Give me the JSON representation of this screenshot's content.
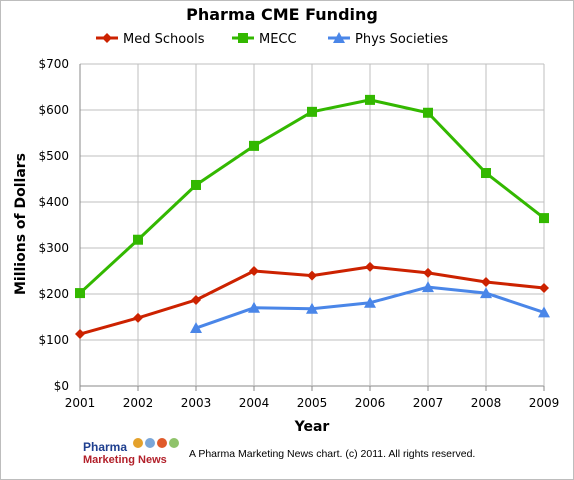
{
  "chart_data": {
    "type": "line",
    "title": "Pharma CME Funding",
    "xlabel": "Year",
    "ylabel": "Millions of Dollars",
    "x": [
      2001,
      2002,
      2003,
      2004,
      2005,
      2006,
      2007,
      2008,
      2009
    ],
    "ylim": [
      0,
      700
    ],
    "yticks": [
      "$0",
      "$100",
      "$200",
      "$300",
      "$400",
      "$500",
      "$600",
      "$700"
    ],
    "grid": true,
    "legend_position": "top",
    "series": [
      {
        "name": "Med Schools",
        "color": "#cc2200",
        "marker": "diamond",
        "values": [
          113,
          148,
          187,
          250,
          240,
          259,
          246,
          226,
          213
        ]
      },
      {
        "name": "MECC",
        "color": "#33b800",
        "marker": "square",
        "values": [
          202,
          318,
          437,
          522,
          596,
          622,
          594,
          463,
          365
        ]
      },
      {
        "name": "Phys Societies",
        "color": "#4a86e8",
        "marker": "triangle",
        "values": [
          null,
          null,
          126,
          170,
          168,
          181,
          215,
          202,
          160
        ]
      }
    ]
  },
  "footer": {
    "logo_line1": "Pharma",
    "logo_line2": "Marketing News",
    "credit": "A Pharma Marketing News chart. (c) 2011. All rights reserved."
  }
}
